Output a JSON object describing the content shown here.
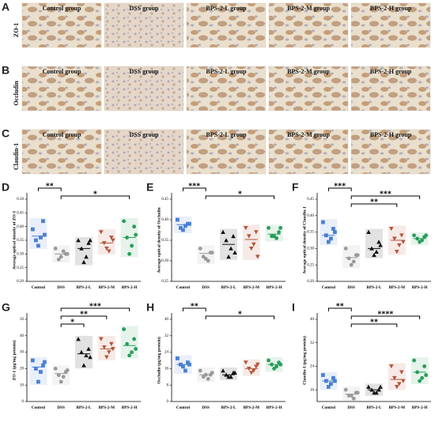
{
  "images": {
    "titles": [
      "Control group",
      "DSS group",
      "BPS-2-L group",
      "BPS-2-M group",
      "BPS-2-H group"
    ],
    "rows": [
      {
        "panel": "A",
        "label": "ZO-1"
      },
      {
        "panel": "B",
        "label": "Occludin"
      },
      {
        "panel": "C",
        "label": "Claudin-1"
      }
    ]
  },
  "chart_data": [
    {
      "type": "dot",
      "panel": "D",
      "y_label": "Average optical density of ZO-1",
      "ylim": [
        0.2,
        0.5
      ],
      "yticks": [
        {
          "value": 0.2,
          "label": "0.20"
        },
        {
          "value": 0.25,
          "label": "0.25"
        },
        {
          "value": 0.3,
          "label": "0.30"
        },
        {
          "value": 0.35,
          "label": "0.35"
        },
        {
          "value": 0.4,
          "label": "0.40"
        },
        {
          "value": 0.45,
          "label": "0.45"
        },
        {
          "value": 0.5,
          "label": "0.50"
        }
      ],
      "series": [
        {
          "name": "Control",
          "color": "#4a7fd4",
          "marker": "square",
          "values": [
            0.39,
            0.42,
            0.35,
            0.36,
            0.33,
            0.37
          ],
          "mean": 0.365
        },
        {
          "name": "DSS",
          "color": "#9a9a9a",
          "marker": "circle",
          "values": [
            0.32,
            0.3,
            0.28,
            0.31,
            0.29,
            0.3
          ],
          "mean": 0.3
        },
        {
          "name": "BPS-2-L",
          "color": "#111111",
          "marker": "triangle-up",
          "values": [
            0.35,
            0.34,
            0.32,
            0.29,
            0.27,
            0.35
          ],
          "mean": 0.32
        },
        {
          "name": "BPS-2-M",
          "color": "#b5553a",
          "marker": "triangle-down",
          "values": [
            0.38,
            0.36,
            0.34,
            0.31,
            0.32,
            0.35
          ],
          "mean": 0.34
        },
        {
          "name": "BPS-2-H",
          "color": "#2a9d5a",
          "marker": "hexagon",
          "values": [
            0.42,
            0.4,
            0.36,
            0.33,
            0.3,
            0.37
          ],
          "mean": 0.36
        }
      ],
      "annotations": [
        {
          "from": 0,
          "to": 1,
          "label": "**"
        },
        {
          "from": 1,
          "to": 4,
          "label": "*"
        }
      ]
    },
    {
      "type": "dot",
      "panel": "E",
      "y_label": "Average optical density of Occludin",
      "ylim": [
        0.25,
        0.45
      ],
      "yticks": [
        {
          "value": 0.25,
          "label": "0.25"
        },
        {
          "value": 0.3,
          "label": "0.30"
        },
        {
          "value": 0.35,
          "label": "0.35"
        },
        {
          "value": 0.4,
          "label": "0.40"
        },
        {
          "value": 0.45,
          "label": "0.45"
        }
      ],
      "series": [
        {
          "name": "Control",
          "color": "#4a7fd4",
          "marker": "square",
          "values": [
            0.4,
            0.39,
            0.38,
            0.385,
            0.375,
            0.39
          ],
          "mean": 0.388
        },
        {
          "name": "DSS",
          "color": "#9a9a9a",
          "marker": "circle",
          "values": [
            0.33,
            0.32,
            0.31,
            0.3,
            0.305,
            0.32
          ],
          "mean": 0.318
        },
        {
          "name": "BPS-2-L",
          "color": "#111111",
          "marker": "triangle-up",
          "values": [
            0.37,
            0.36,
            0.35,
            0.33,
            0.31,
            0.32
          ],
          "mean": 0.34
        },
        {
          "name": "BPS-2-M",
          "color": "#b5553a",
          "marker": "triangle-down",
          "values": [
            0.38,
            0.37,
            0.36,
            0.34,
            0.33,
            0.31
          ],
          "mean": 0.352
        },
        {
          "name": "BPS-2-H",
          "color": "#2a9d5a",
          "marker": "hexagon",
          "values": [
            0.38,
            0.37,
            0.36,
            0.355,
            0.36,
            0.38
          ],
          "mean": 0.365
        }
      ],
      "annotations": [
        {
          "from": 0,
          "to": 1,
          "label": "***"
        },
        {
          "from": 1,
          "to": 4,
          "label": "*"
        }
      ]
    },
    {
      "type": "dot",
      "panel": "F",
      "y_label": "Average optical density of Claudin-1",
      "ylim": [
        0.2,
        0.45
      ],
      "yticks": [
        {
          "value": 0.2,
          "label": "0.20"
        },
        {
          "value": 0.25,
          "label": "0.25"
        },
        {
          "value": 0.3,
          "label": "0.30"
        },
        {
          "value": 0.35,
          "label": "0.35"
        },
        {
          "value": 0.4,
          "label": "0.40"
        },
        {
          "value": 0.45,
          "label": "0.45"
        }
      ],
      "series": [
        {
          "name": "Control",
          "color": "#4a7fd4",
          "marker": "square",
          "values": [
            0.38,
            0.36,
            0.34,
            0.33,
            0.32,
            0.35
          ],
          "mean": 0.34
        },
        {
          "name": "DSS",
          "color": "#9a9a9a",
          "marker": "circle",
          "values": [
            0.3,
            0.28,
            0.27,
            0.26,
            0.25,
            0.28
          ],
          "mean": 0.272
        },
        {
          "name": "BPS-2-L",
          "color": "#111111",
          "marker": "triangle-up",
          "values": [
            0.35,
            0.32,
            0.3,
            0.29,
            0.28,
            0.31
          ],
          "mean": 0.3
        },
        {
          "name": "BPS-2-M",
          "color": "#b5553a",
          "marker": "triangle-down",
          "values": [
            0.36,
            0.34,
            0.33,
            0.31,
            0.29,
            0.32
          ],
          "mean": 0.325
        },
        {
          "name": "BPS-2-H",
          "color": "#2a9d5a",
          "marker": "hexagon",
          "values": [
            0.34,
            0.335,
            0.33,
            0.325,
            0.32,
            0.34
          ],
          "mean": 0.33
        }
      ],
      "annotations": [
        {
          "from": 0,
          "to": 1,
          "label": "***"
        },
        {
          "from": 1,
          "to": 4,
          "label": "***"
        },
        {
          "from": 1,
          "to": 3,
          "label": "**"
        }
      ]
    },
    {
      "type": "dot",
      "panel": "G",
      "y_label": "ZO-1 (pg/mg protein)",
      "ylim": [
        0,
        50
      ],
      "yticks": [
        0,
        10,
        20,
        30,
        40,
        50
      ],
      "series": [
        {
          "name": "Control",
          "color": "#4a7fd4",
          "marker": "square",
          "values": [
            25,
            22,
            20,
            18,
            12,
            24
          ],
          "mean": 21
        },
        {
          "name": "DSS",
          "color": "#9a9a9a",
          "marker": "circle",
          "values": [
            20,
            18,
            16,
            15,
            12,
            19
          ],
          "mean": 17
        },
        {
          "name": "BPS-2-L",
          "color": "#111111",
          "marker": "triangle-up",
          "values": [
            38,
            32,
            30,
            28,
            22,
            27
          ],
          "mean": 29
        },
        {
          "name": "BPS-2-M",
          "color": "#b5553a",
          "marker": "triangle-down",
          "values": [
            38,
            35,
            33,
            30,
            27,
            32
          ],
          "mean": 32
        },
        {
          "name": "BPS-2-H",
          "color": "#2a9d5a",
          "marker": "hexagon",
          "values": [
            44,
            38,
            35,
            30,
            28,
            32
          ],
          "mean": 34
        }
      ],
      "annotations": [
        {
          "from": 1,
          "to": 4,
          "label": "***"
        },
        {
          "from": 1,
          "to": 3,
          "label": "**"
        },
        {
          "from": 1,
          "to": 2,
          "label": "*"
        }
      ]
    },
    {
      "type": "dot",
      "panel": "H",
      "y_label": "Occludin (pg/mg protein)",
      "ylim": [
        0,
        40
      ],
      "yticks": [
        0,
        8,
        16,
        24,
        32,
        40
      ],
      "series": [
        {
          "name": "Control",
          "color": "#4a7fd4",
          "marker": "square",
          "values": [
            21,
            19,
            18,
            15,
            17,
            18
          ],
          "mean": 18
        },
        {
          "name": "DSS",
          "color": "#9a9a9a",
          "marker": "circle",
          "values": [
            15,
            13,
            12,
            11,
            13,
            14
          ],
          "mean": 13
        },
        {
          "name": "BPS-2-L",
          "color": "#111111",
          "marker": "triangle-up",
          "values": [
            15,
            14,
            13,
            12,
            12,
            14
          ],
          "mean": 13
        },
        {
          "name": "BPS-2-M",
          "color": "#b5553a",
          "marker": "triangle-down",
          "values": [
            19,
            17,
            16,
            15,
            14,
            18
          ],
          "mean": 16
        },
        {
          "name": "BPS-2-H",
          "color": "#2a9d5a",
          "marker": "hexagon",
          "values": [
            20,
            19,
            18,
            17,
            16,
            18
          ],
          "mean": 18
        }
      ],
      "annotations": [
        {
          "from": 0,
          "to": 1,
          "label": "**"
        },
        {
          "from": 1,
          "to": 4,
          "label": "*"
        }
      ]
    },
    {
      "type": "dot",
      "panel": "I",
      "y_label": "Claudin-1 (pg/mg protein)",
      "ylim": [
        12,
        40
      ],
      "yticks": [
        16,
        24,
        32,
        40
      ],
      "series": [
        {
          "name": "Control",
          "color": "#4a7fd4",
          "marker": "square",
          "values": [
            21,
            20,
            19,
            18,
            17,
            19
          ],
          "mean": 19
        },
        {
          "name": "DSS",
          "color": "#9a9a9a",
          "marker": "circle",
          "values": [
            16,
            15,
            14,
            13,
            14,
            15
          ],
          "mean": 14.5
        },
        {
          "name": "BPS-2-L",
          "color": "#111111",
          "marker": "triangle-up",
          "values": [
            17,
            16,
            16,
            15,
            15,
            17
          ],
          "mean": 16
        },
        {
          "name": "BPS-2-M",
          "color": "#b5553a",
          "marker": "triangle-down",
          "values": [
            24,
            22,
            20,
            18,
            17,
            19
          ],
          "mean": 19.5
        },
        {
          "name": "BPS-2-H",
          "color": "#2a9d5a",
          "marker": "hexagon",
          "values": [
            26,
            24,
            22,
            20,
            19,
            21
          ],
          "mean": 22
        }
      ],
      "annotations": [
        {
          "from": 0,
          "to": 1,
          "label": "**"
        },
        {
          "from": 1,
          "to": 4,
          "label": "****"
        },
        {
          "from": 1,
          "to": 3,
          "label": "**"
        }
      ]
    }
  ]
}
